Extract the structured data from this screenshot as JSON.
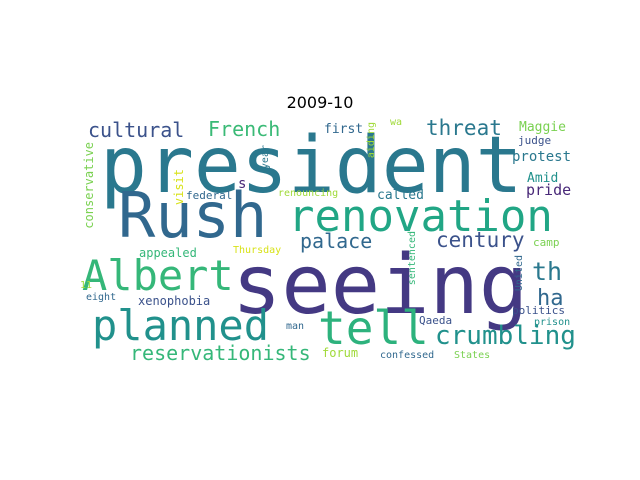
{
  "title": "2009-10",
  "colors": {
    "dark_purple": "#443983",
    "teal": "#2a788e",
    "blue_teal": "#31688e",
    "green_teal": "#21918c",
    "green": "#35b779",
    "light_green": "#7ad151",
    "lime": "#a0da39",
    "yellow": "#d8e219",
    "slate": "#3b528b"
  },
  "words": [
    {
      "text": "president",
      "color": "#2a788e"
    },
    {
      "text": "Rush",
      "color": "#31688e"
    },
    {
      "text": "seeing",
      "color": "#443983"
    },
    {
      "text": "renovation",
      "color": "#21a685"
    },
    {
      "text": "Albert",
      "color": "#35b779"
    },
    {
      "text": "planned",
      "color": "#21918c"
    },
    {
      "text": "tell",
      "color": "#2db27d"
    },
    {
      "text": "crumbling",
      "color": "#21918c"
    },
    {
      "text": "reservationists",
      "color": "#35b779"
    },
    {
      "text": "cultural",
      "color": "#3b528b"
    },
    {
      "text": "French",
      "color": "#3aba76"
    },
    {
      "text": "threat",
      "color": "#2a788e"
    },
    {
      "text": "palace",
      "color": "#31688e"
    },
    {
      "text": "century",
      "color": "#3b528b"
    },
    {
      "text": "th",
      "color": "#2a788e"
    },
    {
      "text": "ha",
      "color": "#31688e"
    },
    {
      "text": "Maggie",
      "color": "#7ad151"
    },
    {
      "text": "protest",
      "color": "#2a788e"
    },
    {
      "text": "Amid",
      "color": "#21918c"
    },
    {
      "text": "pride",
      "color": "#482878"
    },
    {
      "text": "camp",
      "color": "#7ad151"
    },
    {
      "text": "called",
      "color": "#2a788e"
    },
    {
      "text": "first",
      "color": "#31688e"
    },
    {
      "text": "wa",
      "color": "#a0da39"
    },
    {
      "text": "federal",
      "color": "#31688e"
    },
    {
      "text": "renouncing",
      "color": "#a0da39"
    },
    {
      "text": "appealed",
      "color": "#35b779"
    },
    {
      "text": "Thursday",
      "color": "#d8e219"
    },
    {
      "text": "xenophobia",
      "color": "#3b528b"
    },
    {
      "text": "s",
      "color": "#482878"
    },
    {
      "text": "forum",
      "color": "#a0da39"
    },
    {
      "text": "Qaeda",
      "color": "#3b528b"
    },
    {
      "text": "man",
      "color": "#31688e"
    },
    {
      "text": "confessed",
      "color": "#31688e"
    },
    {
      "text": "States",
      "color": "#7ad151"
    },
    {
      "text": "politics",
      "color": "#3b528b"
    },
    {
      "text": "judge",
      "color": "#3b528b"
    },
    {
      "text": "prison",
      "color": "#21918c"
    },
    {
      "text": "eight",
      "color": "#31688e"
    },
    {
      "text": "11",
      "color": "#a0da39"
    },
    {
      "text": "conservative",
      "color": "#7ad151"
    },
    {
      "text": "visit",
      "color": "#d8e219"
    },
    {
      "text": "year",
      "color": "#2a788e"
    },
    {
      "text": "aiding",
      "color": "#a0da39"
    },
    {
      "text": "sentenced",
      "color": "#35b779"
    },
    {
      "text": "United",
      "color": "#31688e"
    }
  ]
}
